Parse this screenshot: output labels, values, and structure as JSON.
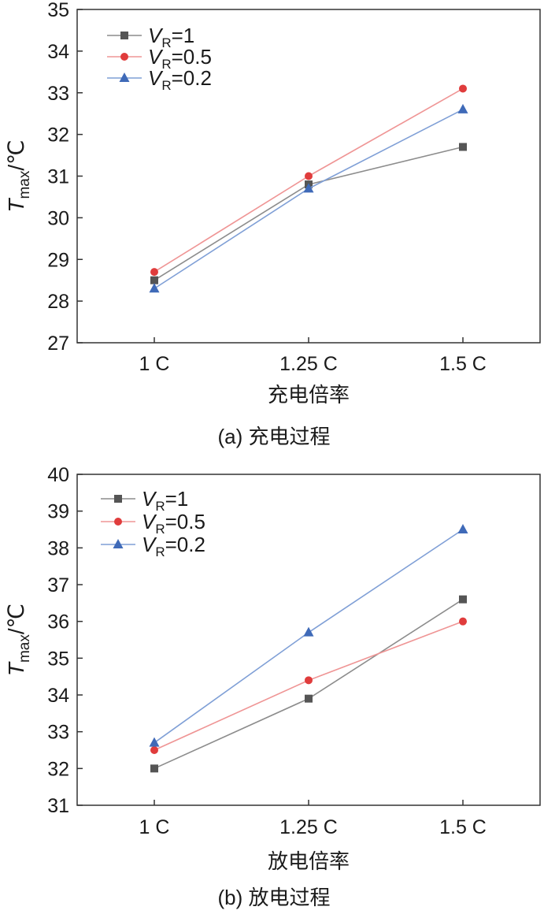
{
  "chart_data": [
    {
      "type": "line",
      "panel": "a",
      "caption": "(a) 充电过程",
      "xlabel": "充电倍率",
      "ylabel_main": "T",
      "ylabel_sub": "max",
      "ylabel_unit": "/℃",
      "categories": [
        "1 C",
        "1.25 C",
        "1.5 C"
      ],
      "ylim": [
        27,
        35
      ],
      "yticks": [
        "27",
        "28",
        "29",
        "30",
        "31",
        "32",
        "33",
        "34",
        "35"
      ],
      "legend_position": "top-left",
      "series": [
        {
          "name_main": "V",
          "name_sub": "R",
          "name_rest": "=1",
          "color": "#555555",
          "line_color": "#8c8c8c",
          "marker": "square",
          "values": [
            28.5,
            30.8,
            31.7
          ]
        },
        {
          "name_main": "V",
          "name_sub": "R",
          "name_rest": "=0.5",
          "color": "#e03c3c",
          "line_color": "#ef9595",
          "marker": "circle",
          "values": [
            28.7,
            31.0,
            33.1
          ]
        },
        {
          "name_main": "V",
          "name_sub": "R",
          "name_rest": "=0.2",
          "color": "#3f6ab8",
          "line_color": "#7f9fd6",
          "marker": "triangle",
          "values": [
            28.3,
            30.7,
            32.6
          ]
        }
      ]
    },
    {
      "type": "line",
      "panel": "b",
      "caption": "(b) 放电过程",
      "xlabel": "放电倍率",
      "ylabel_main": "T",
      "ylabel_sub": "max",
      "ylabel_unit": "/℃",
      "categories": [
        "1 C",
        "1.25 C",
        "1.5 C"
      ],
      "ylim": [
        31,
        40
      ],
      "yticks": [
        "31",
        "32",
        "33",
        "34",
        "35",
        "36",
        "37",
        "38",
        "39",
        "40"
      ],
      "legend_position": "top-left",
      "series": [
        {
          "name_main": "V",
          "name_sub": "R",
          "name_rest": "=1",
          "color": "#555555",
          "line_color": "#8c8c8c",
          "marker": "square",
          "values": [
            32.0,
            33.9,
            36.6
          ]
        },
        {
          "name_main": "V",
          "name_sub": "R",
          "name_rest": "=0.5",
          "color": "#e03c3c",
          "line_color": "#ef9595",
          "marker": "circle",
          "values": [
            32.5,
            34.4,
            36.0
          ]
        },
        {
          "name_main": "V",
          "name_sub": "R",
          "name_rest": "=0.2",
          "color": "#3f6ab8",
          "line_color": "#7f9fd6",
          "marker": "triangle",
          "values": [
            32.7,
            35.7,
            38.5
          ]
        }
      ]
    }
  ]
}
